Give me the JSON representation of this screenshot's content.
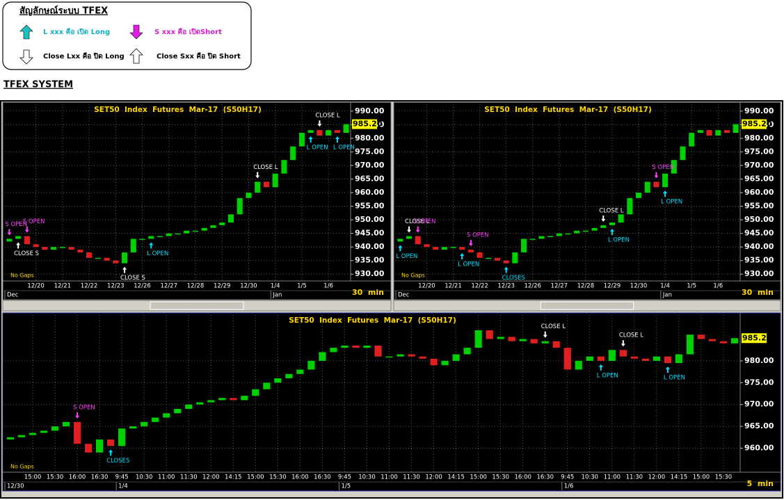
{
  "legend_box": {
    "title": "สัญลักษณ์ระบบ TFEX",
    "items": [
      "L xxx คือ เปิด Long",
      "S xxx คือ เปิดShort",
      "Close Lxx คือ ปิด Long",
      "Close Sxx คือ ปิด Short"
    ]
  },
  "section_title": "TFEX SYSTEM",
  "chart_data": [
    {
      "type": "candlestick",
      "title": "SET50  Index  Futures  Mar-17  (S50H17)",
      "categories": [
        null,
        null,
        null,
        "12/20",
        null,
        null,
        "12/21",
        null,
        null,
        "12/22",
        null,
        null,
        "12/23",
        null,
        null,
        "12/26",
        null,
        null,
        "12/27",
        null,
        null,
        "12/28",
        null,
        null,
        "12/29",
        null,
        null,
        "12/30",
        null,
        null,
        "1/4",
        null,
        null,
        "1/5",
        null,
        null,
        "1/6",
        null,
        null
      ],
      "periods": [
        "Dec",
        null,
        null,
        null,
        null,
        null,
        null,
        null,
        null,
        null,
        null,
        null,
        null,
        null,
        null,
        null,
        null,
        null,
        null,
        null,
        null,
        null,
        null,
        null,
        null,
        null,
        null,
        null,
        null,
        null,
        "Jan",
        null,
        null,
        null,
        null,
        null,
        null,
        null,
        null
      ],
      "open": [
        942,
        943,
        944,
        941,
        940,
        939,
        940,
        940,
        939,
        938,
        936,
        936,
        935,
        934,
        938,
        943,
        943,
        944,
        944,
        945,
        945,
        946,
        946,
        947,
        948,
        949,
        952,
        958,
        960,
        964,
        962,
        967,
        972,
        977,
        982,
        983,
        981,
        983,
        982
      ],
      "close": [
        943,
        944,
        941,
        940,
        939,
        940,
        940,
        939,
        938,
        936,
        936,
        935,
        934,
        938,
        943,
        943,
        944,
        944,
        945,
        945,
        946,
        946,
        947,
        948,
        949,
        952,
        958,
        960,
        964,
        962,
        967,
        972,
        977,
        982,
        983,
        981,
        983,
        982,
        985.2
      ],
      "up_color": "#00d000",
      "down_color": "#e02020",
      "ylim": [
        927.5,
        992.5
      ],
      "yticks": [
        {
          "value": 930,
          "label": "930.00"
        },
        {
          "value": 935,
          "label": "935.00"
        },
        {
          "value": 940,
          "label": "940.00"
        },
        {
          "value": 945,
          "label": "945.00"
        },
        {
          "value": 950,
          "label": "950.00"
        },
        {
          "value": 955,
          "label": "955.00"
        },
        {
          "value": 960,
          "label": "960.00"
        },
        {
          "value": 965,
          "label": "965.00"
        },
        {
          "value": 970,
          "label": "970.00"
        },
        {
          "value": 975,
          "label": "975.00"
        },
        {
          "value": 980,
          "label": "980.00"
        },
        {
          "value": 985,
          "label": "985.00"
        },
        {
          "value": 990,
          "label": "990.00"
        }
      ],
      "last_price": {
        "value": 985.2,
        "label": "985.20"
      },
      "grid": true,
      "gaps_note": "No Gaps",
      "interval": "30  min",
      "annotations": [
        {
          "text": "S  OPEN",
          "index": 0,
          "side": "above",
          "color": "#ff40ff"
        },
        {
          "text": "S  OPEN",
          "index": 2,
          "side": "above",
          "color": "#ff40ff"
        },
        {
          "text": "CLOSE  S",
          "index": 1,
          "side": "below",
          "color": "#ffffff"
        },
        {
          "text": "CLOSE  S",
          "index": 13,
          "side": "below",
          "color": "#ffffff"
        },
        {
          "text": "L  OPEN",
          "index": 16,
          "side": "below",
          "color": "#00e0ff"
        },
        {
          "text": "CLOSE  L",
          "index": 28,
          "side": "above",
          "color": "#ffffff"
        },
        {
          "text": "CLOSE  L",
          "index": 35,
          "side": "above",
          "color": "#ffffff"
        },
        {
          "text": "L  OPEN",
          "index": 34,
          "side": "below",
          "color": "#00e0ff"
        },
        {
          "text": "L  OPEN",
          "index": 37,
          "side": "below",
          "color": "#00e0ff"
        }
      ]
    },
    {
      "type": "candlestick",
      "title": "SET50  Index  Futures  Mar-17  (S50H17)",
      "categories": [
        null,
        null,
        null,
        "12/20",
        null,
        null,
        "12/21",
        null,
        null,
        "12/22",
        null,
        null,
        "12/23",
        null,
        null,
        "12/26",
        null,
        null,
        "12/27",
        null,
        null,
        "12/28",
        null,
        null,
        "12/29",
        null,
        null,
        "12/30",
        null,
        null,
        "1/4",
        null,
        null,
        "1/5",
        null,
        null,
        "1/6",
        null,
        null
      ],
      "periods": [
        "Dec",
        null,
        null,
        null,
        null,
        null,
        null,
        null,
        null,
        null,
        null,
        null,
        null,
        null,
        null,
        null,
        null,
        null,
        null,
        null,
        null,
        null,
        null,
        null,
        null,
        null,
        null,
        null,
        null,
        null,
        "Jan",
        null,
        null,
        null,
        null,
        null,
        null,
        null,
        null
      ],
      "open": [
        942,
        943,
        944,
        941,
        940,
        939,
        940,
        940,
        939,
        938,
        936,
        936,
        935,
        934,
        938,
        943,
        943,
        944,
        944,
        945,
        945,
        946,
        946,
        947,
        948,
        949,
        952,
        958,
        960,
        964,
        962,
        967,
        972,
        977,
        982,
        983,
        981,
        983,
        982
      ],
      "close": [
        943,
        944,
        941,
        940,
        939,
        940,
        940,
        939,
        938,
        936,
        936,
        935,
        934,
        938,
        943,
        943,
        944,
        944,
        945,
        945,
        946,
        946,
        947,
        948,
        949,
        952,
        958,
        960,
        964,
        962,
        967,
        972,
        977,
        982,
        983,
        981,
        983,
        982,
        985.2
      ],
      "up_color": "#00d000",
      "down_color": "#e02020",
      "ylim": [
        927.5,
        992.5
      ],
      "yticks": [
        {
          "value": 930,
          "label": "930.00"
        },
        {
          "value": 935,
          "label": "935.00"
        },
        {
          "value": 940,
          "label": "940.00"
        },
        {
          "value": 945,
          "label": "945.00"
        },
        {
          "value": 950,
          "label": "950.00"
        },
        {
          "value": 955,
          "label": "955.00"
        },
        {
          "value": 960,
          "label": "960.00"
        },
        {
          "value": 965,
          "label": "965.00"
        },
        {
          "value": 970,
          "label": "970.00"
        },
        {
          "value": 975,
          "label": "975.00"
        },
        {
          "value": 980,
          "label": "980.00"
        },
        {
          "value": 985,
          "label": "985.00"
        },
        {
          "value": 990,
          "label": "990.00"
        }
      ],
      "last_price": {
        "value": 985.2,
        "label": "985.20"
      },
      "grid": true,
      "gaps_note": "No Gaps",
      "interval": "30  min",
      "annotations": [
        {
          "text": "CLOSE  L",
          "index": 1,
          "side": "above",
          "color": "#ffffff"
        },
        {
          "text": "S  OPEN",
          "index": 2,
          "side": "above",
          "color": "#ff40ff"
        },
        {
          "text": "L  OPEN",
          "index": 0,
          "side": "below",
          "color": "#00e0ff"
        },
        {
          "text": "S  OPEN",
          "index": 8,
          "side": "above",
          "color": "#ff40ff"
        },
        {
          "text": "L  OPEN",
          "index": 7,
          "side": "below",
          "color": "#00e0ff"
        },
        {
          "text": "CLOSES",
          "index": 12,
          "side": "below",
          "color": "#00e0ff"
        },
        {
          "text": "CLOSE  L",
          "index": 23,
          "side": "above",
          "color": "#ffffff"
        },
        {
          "text": "L  OPEN",
          "index": 24,
          "side": "below",
          "color": "#00e0ff"
        },
        {
          "text": "S  OPEN",
          "index": 29,
          "side": "above",
          "color": "#ff40ff"
        },
        {
          "text": "L  OPEN",
          "index": 30,
          "side": "below",
          "color": "#00e0ff"
        }
      ]
    },
    {
      "type": "candlestick",
      "title": "SET50  Index  Futures  Mar-17  (S50H17)",
      "categories": [
        null,
        null,
        "15:00",
        null,
        "15:30",
        null,
        "16:00",
        null,
        "16:30",
        null,
        "9:45",
        null,
        "10:30",
        null,
        "11:00",
        null,
        "11:30",
        null,
        "12:00",
        null,
        "14:15",
        null,
        "15:00",
        null,
        "15:30",
        null,
        "16:00",
        null,
        "16:30",
        null,
        "9:45",
        null,
        "10:30",
        null,
        "11:00",
        null,
        "11:30",
        null,
        "12:00",
        null,
        "14:15",
        null,
        "15:00",
        null,
        "15:30",
        null,
        "16:00",
        null,
        "16:30",
        null,
        "9:45",
        null,
        "10:30",
        null,
        "11:00",
        null,
        "11:30",
        null,
        "12:00",
        null,
        "14:15",
        null,
        "15:00",
        null,
        "15:30",
        null
      ],
      "periods": [
        "12/30",
        null,
        null,
        null,
        null,
        null,
        null,
        null,
        null,
        null,
        "1/4",
        null,
        null,
        null,
        null,
        null,
        null,
        null,
        null,
        null,
        null,
        null,
        null,
        null,
        null,
        null,
        null,
        null,
        null,
        null,
        "1/5",
        null,
        null,
        null,
        null,
        null,
        null,
        null,
        null,
        null,
        null,
        null,
        null,
        null,
        null,
        null,
        null,
        null,
        null,
        null,
        "1/6",
        null,
        null,
        null,
        null,
        null,
        null,
        null,
        null,
        null,
        null,
        null,
        null,
        null,
        null,
        null
      ],
      "open": [
        962,
        962.5,
        963,
        963.5,
        964,
        965,
        966,
        961,
        959,
        962,
        960.5,
        964.5,
        965,
        966,
        967,
        968,
        969,
        970,
        970.5,
        971,
        971.5,
        971,
        972,
        973.5,
        975,
        976,
        977,
        978,
        980,
        982,
        983,
        983.5,
        983,
        983.5,
        981,
        981,
        981.5,
        981,
        980.5,
        979,
        980,
        981.5,
        983,
        987,
        985,
        985.5,
        984.5,
        985,
        984,
        984.5,
        983,
        978,
        980,
        981,
        980,
        982.5,
        981,
        980.5,
        980,
        981,
        979.5,
        981.5,
        986,
        985,
        984.5,
        984
      ],
      "close": [
        962.5,
        963,
        963.5,
        964,
        965,
        966,
        961,
        959,
        962,
        960.5,
        964.5,
        965,
        966,
        967,
        968,
        969,
        970,
        970.5,
        971,
        971.5,
        971,
        972,
        973.5,
        975,
        976,
        977,
        978,
        980,
        982,
        983,
        983.5,
        983,
        983.5,
        981,
        981,
        981.5,
        981,
        980.5,
        979,
        980,
        981.5,
        983,
        987,
        985,
        985.5,
        984.5,
        985,
        984,
        984.5,
        983,
        978,
        980,
        981,
        980,
        982.5,
        981,
        980.5,
        980,
        981,
        979.5,
        981.5,
        986,
        985,
        984.5,
        984,
        985.2
      ],
      "up_color": "#00d000",
      "down_color": "#e02020",
      "ylim": [
        954.5,
        990.5
      ],
      "yticks": [
        {
          "value": 960,
          "label": "960.00"
        },
        {
          "value": 965,
          "label": "965.00"
        },
        {
          "value": 970,
          "label": "970.00"
        },
        {
          "value": 975,
          "label": "975.00"
        },
        {
          "value": 980,
          "label": "980.00"
        }
      ],
      "last_price": {
        "value": 985.2,
        "label": "985.20"
      },
      "grid": true,
      "gaps_note": "No Gaps",
      "interval": "5  min",
      "annotations": [
        {
          "text": "S  OPEN",
          "index": 6,
          "side": "above",
          "color": "#ff40ff"
        },
        {
          "text": "CLOSES",
          "index": 9,
          "side": "below",
          "color": "#00e0ff"
        },
        {
          "text": "CLOSE  L",
          "index": 48,
          "side": "above",
          "color": "#ffffff"
        },
        {
          "text": "L  OPEN",
          "index": 53,
          "side": "below",
          "color": "#00e0ff"
        },
        {
          "text": "CLOSE  L",
          "index": 55,
          "side": "above",
          "color": "#ffffff"
        },
        {
          "text": "L  OPEN",
          "index": 59,
          "side": "below",
          "color": "#00e0ff"
        }
      ]
    }
  ]
}
